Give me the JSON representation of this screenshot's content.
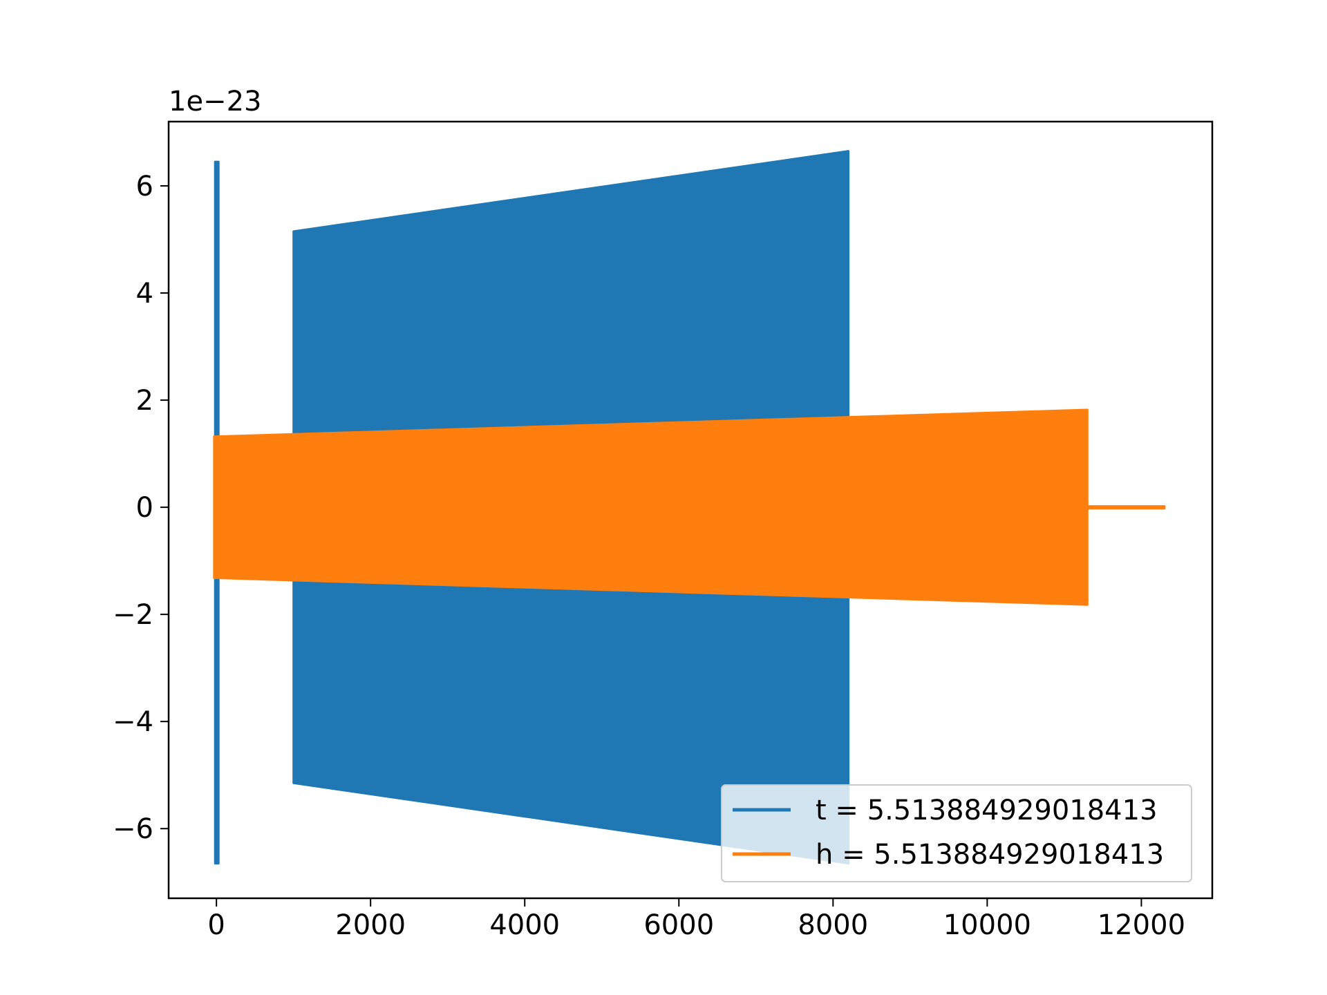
{
  "chart_data": {
    "type": "line",
    "title": "",
    "xlabel": "",
    "ylabel": "",
    "y_offset_label": "1e−23",
    "xlim": [
      -620,
      12920
    ],
    "ylim": [
      -7.3,
      7.2
    ],
    "xticks": [
      0,
      2000,
      4000,
      6000,
      8000,
      10000,
      12000
    ],
    "xtick_labels": [
      "0",
      "2000",
      "4000",
      "6000",
      "8000",
      "10000",
      "12000"
    ],
    "yticks": [
      -6,
      -4,
      -2,
      0,
      2,
      4,
      6
    ],
    "ytick_labels": [
      "−6",
      "−4",
      "−2",
      "0",
      "2",
      "4",
      "6"
    ],
    "grid": false,
    "legend_position": "lower-right",
    "series": [
      {
        "name": "t = 5.513884929018413",
        "color": "#1f77b4",
        "segments": [
          {
            "x_start": -10,
            "x_end": 20,
            "upper": [
              6.45,
              6.45
            ],
            "lower": [
              -6.65,
              -6.65
            ]
          },
          {
            "x_start": 1000,
            "x_end": 8200,
            "upper": [
              5.15,
              6.65
            ],
            "lower": [
              -5.15,
              -6.65
            ]
          }
        ]
      },
      {
        "name": "h = 5.513884929018413",
        "color": "#ff7f0e",
        "segments": [
          {
            "x_start": -30,
            "x_end": 11300,
            "upper": [
              1.32,
              1.82
            ],
            "lower": [
              -1.32,
              -1.82
            ]
          },
          {
            "x_start": 11300,
            "x_end": 12300,
            "upper": [
              0.02,
              0.02
            ],
            "lower": [
              -0.02,
              -0.02
            ]
          }
        ]
      }
    ]
  }
}
